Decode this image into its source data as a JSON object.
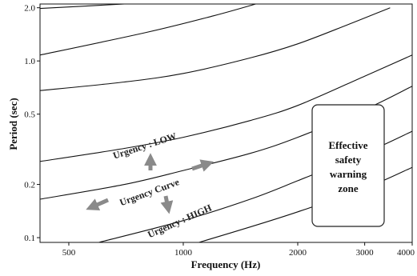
{
  "chart_data": {
    "type": "line",
    "title": "",
    "xlabel": "Frequency (Hz)",
    "ylabel": "Period (sec)",
    "x_scale": "log",
    "y_scale": "log",
    "xlim": [
      420,
      4000
    ],
    "ylim": [
      0.094,
      2.1
    ],
    "x_ticks": [
      {
        "value": 500,
        "label": "500"
      },
      {
        "value": 1000,
        "label": "1000"
      },
      {
        "value": 2000,
        "label": "2000"
      },
      {
        "value": 3000,
        "label": "3000"
      },
      {
        "value": 4000,
        "label": "4000"
      }
    ],
    "y_ticks": [
      {
        "value": 0.1,
        "label": "0.1"
      },
      {
        "value": 0.2,
        "label": "0.2"
      },
      {
        "value": 0.5,
        "label": "0.5"
      },
      {
        "value": 1.0,
        "label": "1.0"
      },
      {
        "value": 2.0,
        "label": "2.0"
      }
    ],
    "grid": false,
    "legend": "none",
    "series": [
      {
        "values": [
          [
            420,
            1.98
          ],
          [
            700,
            2.1
          ]
        ]
      },
      {
        "values": [
          [
            420,
            1.08
          ],
          [
            800,
            1.45
          ],
          [
            1200,
            1.8
          ],
          [
            1550,
            2.1
          ]
        ]
      },
      {
        "values": [
          [
            420,
            0.68
          ],
          [
            700,
            0.76
          ],
          [
            1000,
            0.85
          ],
          [
            1500,
            1.04
          ],
          [
            2000,
            1.25
          ],
          [
            2700,
            1.6
          ],
          [
            3500,
            2.0
          ]
        ]
      },
      {
        "values": [
          [
            420,
            0.27
          ],
          [
            700,
            0.32
          ],
          [
            1000,
            0.37
          ],
          [
            1500,
            0.46
          ],
          [
            2000,
            0.56
          ],
          [
            3000,
            0.82
          ],
          [
            4000,
            1.08
          ]
        ]
      },
      {
        "values": [
          [
            420,
            0.165
          ],
          [
            700,
            0.2
          ],
          [
            1000,
            0.24
          ],
          [
            1500,
            0.3
          ],
          [
            2000,
            0.37
          ],
          [
            3000,
            0.53
          ],
          [
            4000,
            0.72
          ]
        ]
      },
      {
        "values": [
          [
            600,
            0.094
          ],
          [
            1000,
            0.125
          ],
          [
            1500,
            0.165
          ],
          [
            2000,
            0.21
          ],
          [
            3000,
            0.3
          ],
          [
            4000,
            0.4
          ]
        ]
      },
      {
        "values": [
          [
            1100,
            0.094
          ],
          [
            1500,
            0.115
          ],
          [
            2000,
            0.14
          ],
          [
            3000,
            0.19
          ],
          [
            4000,
            0.25
          ]
        ]
      }
    ],
    "annotations": {
      "low": "Urgency : LOW",
      "curve": "Urgency Curve",
      "high": "Urgency : HIGH"
    },
    "zone": {
      "lines": [
        "Effective",
        "safety",
        "warning",
        "zone"
      ]
    },
    "arrow_color": "#8a8a8a"
  }
}
